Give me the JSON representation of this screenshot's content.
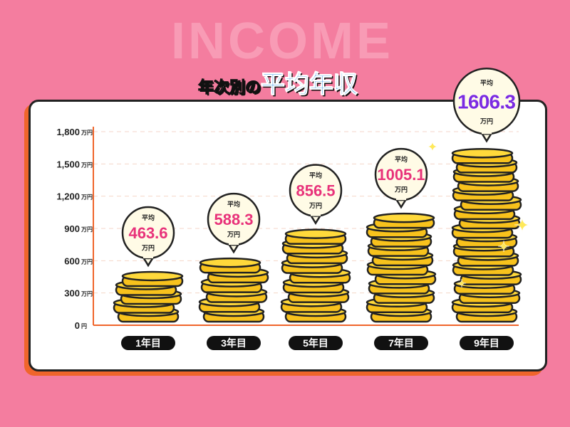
{
  "background_text": "INCOME",
  "title": {
    "prefix": "年次別の",
    "main": "平均年収"
  },
  "colors": {
    "background": "#f47d9f",
    "axis": "#f0652b",
    "value_text": "#e8327a",
    "highlight_text": "#7b2be0",
    "coin": "#f8c21c",
    "bubble": "#fffbe6"
  },
  "chart_data": {
    "type": "bar",
    "categories": [
      "1年目",
      "3年目",
      "5年目",
      "7年目",
      "9年目"
    ],
    "values": [
      463.6,
      588.3,
      856.5,
      1005.1,
      1606.3
    ],
    "labels": [
      "463.6",
      "588.3",
      "856.5",
      "1005.1",
      "1606.3"
    ],
    "bubble_prefix": "平均",
    "unit": "万円",
    "ylim": [
      0,
      1800
    ],
    "yticks": [
      {
        "v": 0,
        "label": "0",
        "unit": "円"
      },
      {
        "v": 300,
        "label": "300",
        "unit": "万円"
      },
      {
        "v": 600,
        "label": "600",
        "unit": "万円"
      },
      {
        "v": 900,
        "label": "900",
        "unit": "万円"
      },
      {
        "v": 1200,
        "label": "1,200",
        "unit": "万円"
      },
      {
        "v": 1500,
        "label": "1,500",
        "unit": "万円"
      },
      {
        "v": 1800,
        "label": "1,800",
        "unit": "万円"
      }
    ],
    "grid": true,
    "bar_style": "coin stacks"
  }
}
